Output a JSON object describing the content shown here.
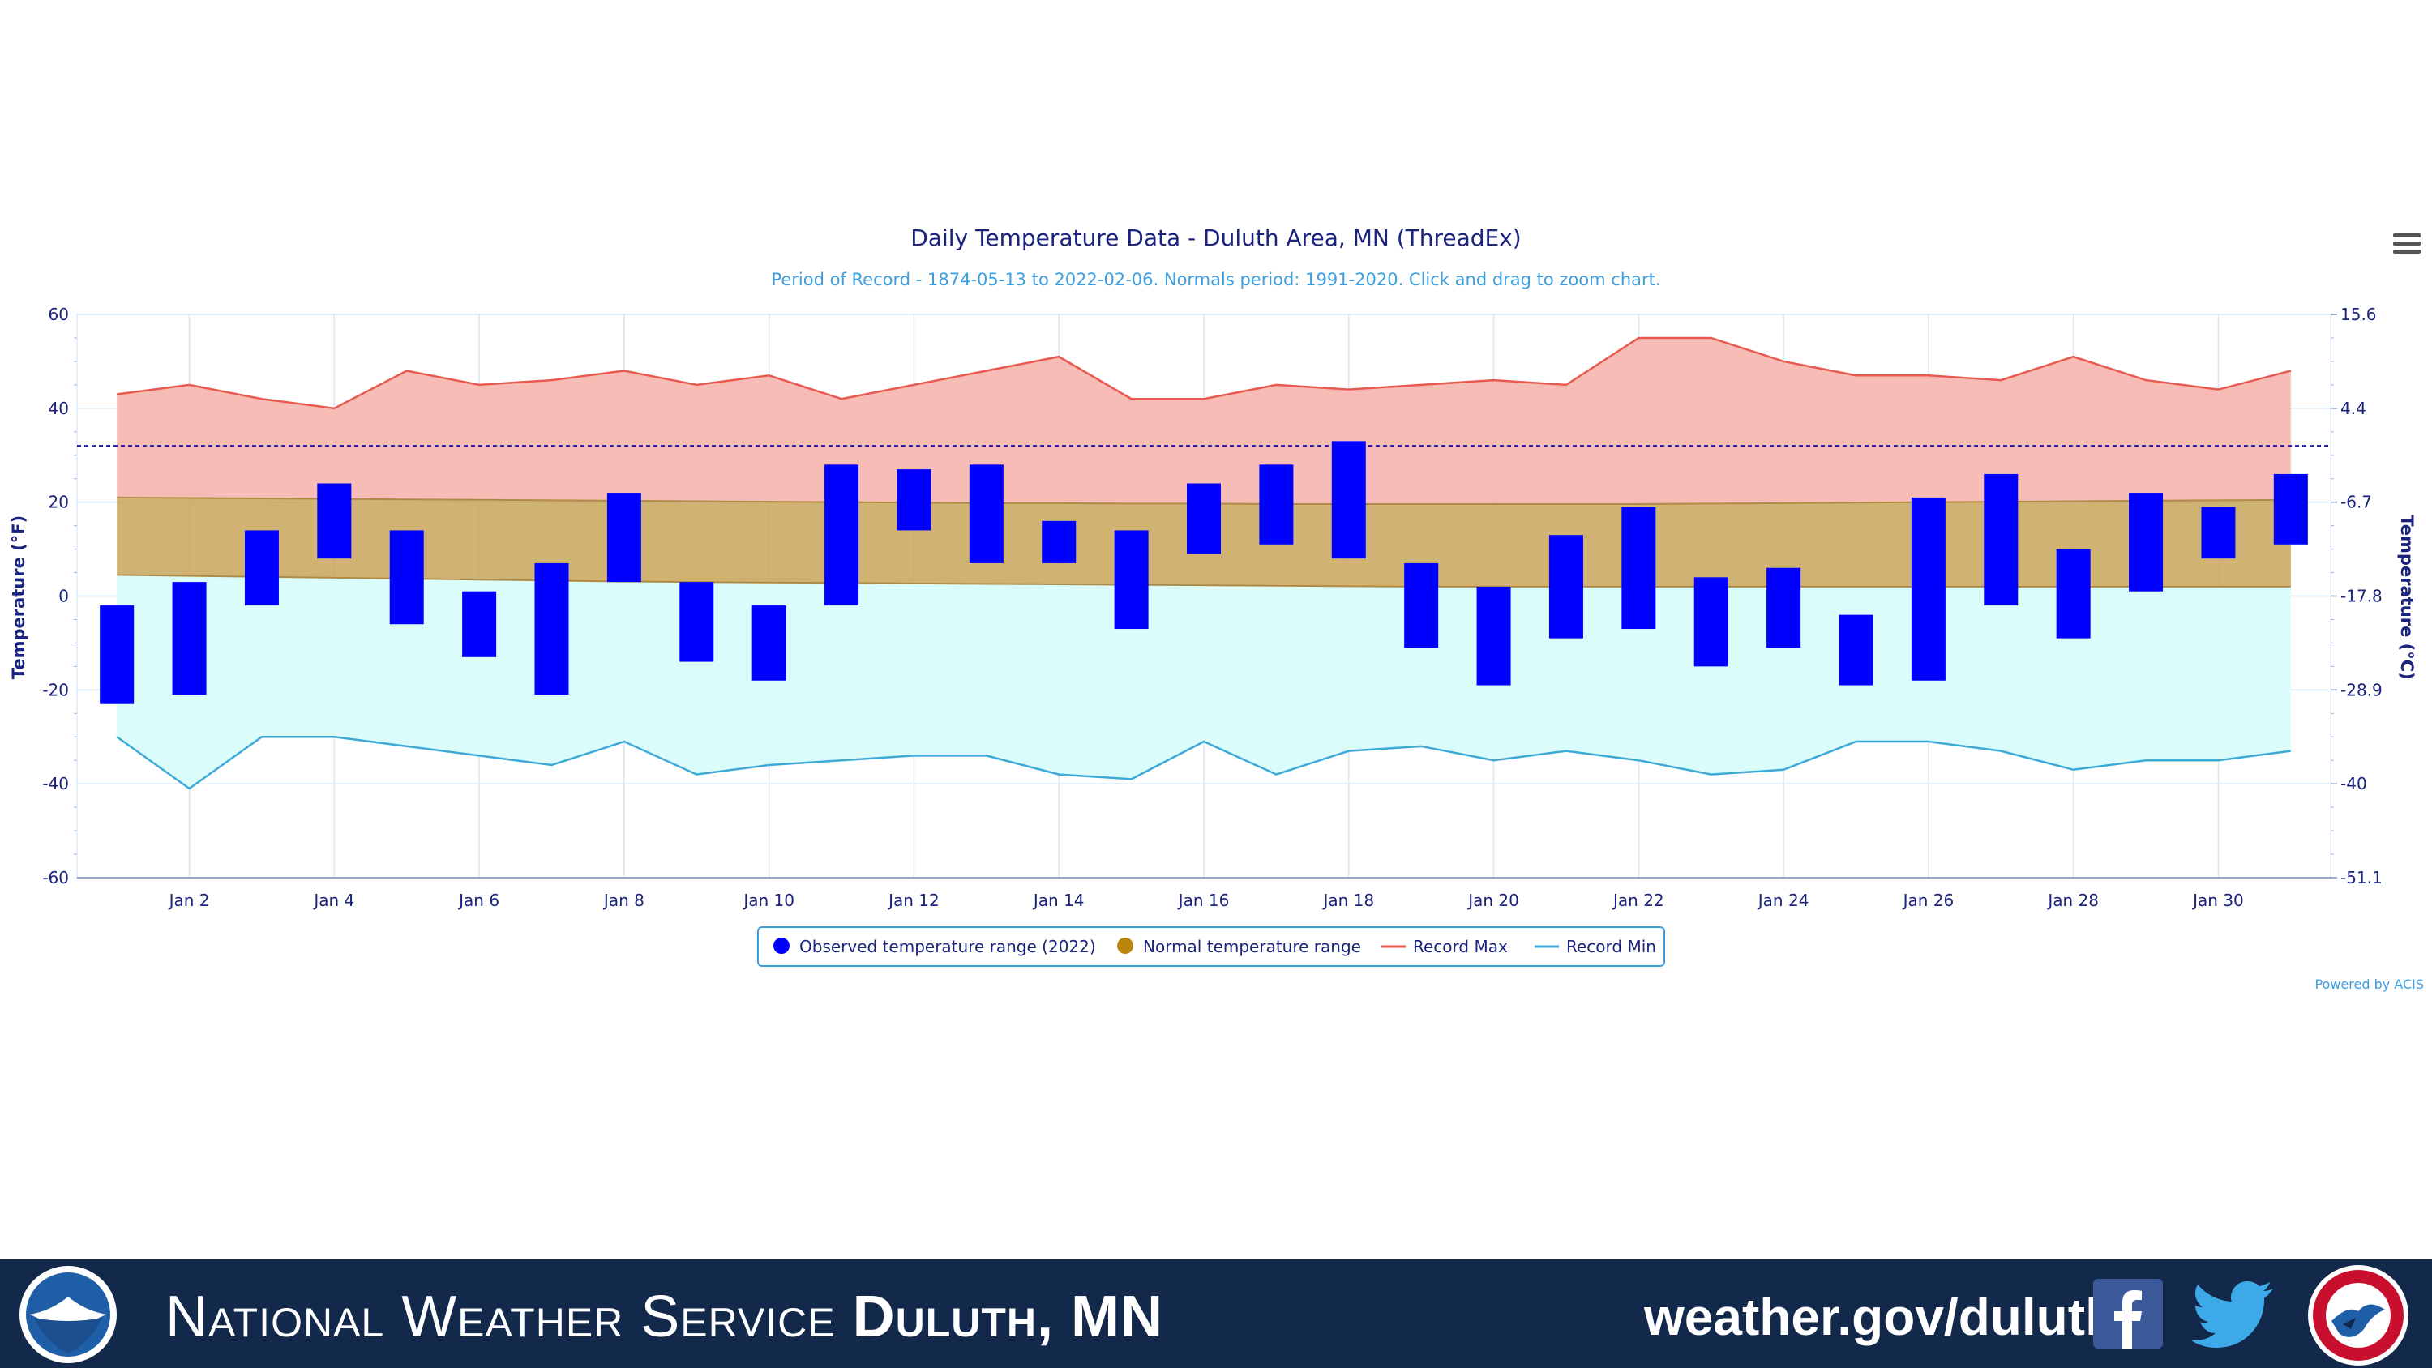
{
  "chart_data": {
    "type": "floating-bar-with-areas",
    "title": "Daily Temperature Data - Duluth Area, MN (ThreadEx)",
    "subtitle": "Period of Record - 1874-05-13 to 2022-02-06. Normals period: 1991-2020. Click and drag to zoom chart.",
    "ylabel_left": "Temperature (°F)",
    "ylabel_right": "Temperature (°C)",
    "ylim": [
      -60,
      60
    ],
    "yticks_left": [
      "60",
      "40",
      "20",
      "0",
      "-20",
      "-40",
      "-60"
    ],
    "yticks_right": [
      "15.6",
      "4.4",
      "-6.7",
      "-17.8",
      "-28.9",
      "-40",
      "-51.1"
    ],
    "xticks": [
      "Jan 2",
      "Jan 4",
      "Jan 6",
      "Jan 8",
      "Jan 10",
      "Jan 12",
      "Jan 14",
      "Jan 16",
      "Jan 18",
      "Jan 20",
      "Jan 22",
      "Jan 24",
      "Jan 26",
      "Jan 28",
      "Jan 30"
    ],
    "freezing_line": 32,
    "x": [
      1,
      2,
      3,
      4,
      5,
      6,
      7,
      8,
      9,
      10,
      11,
      12,
      13,
      14,
      15,
      16,
      17,
      18,
      19,
      20,
      21,
      22,
      23,
      24,
      25,
      26,
      27,
      28,
      29,
      30,
      31
    ],
    "series": [
      {
        "name": "Observed temperature range (2022)",
        "color": "#0000ff",
        "low": [
          -23,
          -21,
          -2,
          8,
          -6,
          -13,
          -21,
          3,
          -14,
          -18,
          -2,
          14,
          7,
          7,
          -7,
          9,
          11,
          8,
          -11,
          -19,
          -9,
          -7,
          -15,
          -11,
          -19,
          -18,
          -2,
          -9,
          1,
          8,
          11
        ],
        "high": [
          -2,
          3,
          14,
          24,
          14,
          1,
          7,
          22,
          3,
          -2,
          28,
          27,
          28,
          16,
          14,
          24,
          28,
          33,
          7,
          2,
          13,
          19,
          4,
          6,
          -4,
          21,
          26,
          10,
          22,
          19,
          26
        ]
      },
      {
        "name": "Normal temperature range",
        "color": "#c8a45a",
        "low": [
          4.5,
          4.3,
          4.1,
          3.9,
          3.7,
          3.5,
          3.3,
          3.1,
          3.0,
          2.9,
          2.8,
          2.7,
          2.6,
          2.5,
          2.4,
          2.3,
          2.2,
          2.1,
          2.0,
          2.0,
          2.0,
          2.0,
          2.0,
          2.0,
          2.0,
          2.0,
          2.0,
          2.0,
          2.0,
          2.0,
          2.0
        ],
        "high": [
          21,
          20.9,
          20.8,
          20.7,
          20.6,
          20.5,
          20.4,
          20.3,
          20.2,
          20.1,
          20.0,
          19.9,
          19.8,
          19.8,
          19.7,
          19.7,
          19.6,
          19.6,
          19.6,
          19.6,
          19.6,
          19.6,
          19.7,
          19.8,
          19.9,
          20.0,
          20.1,
          20.2,
          20.3,
          20.4,
          20.5
        ]
      },
      {
        "name": "Record Max",
        "color": "#e8594f",
        "values": [
          43,
          45,
          42,
          40,
          48,
          45,
          46,
          48,
          45,
          47,
          42,
          45,
          48,
          51,
          42,
          42,
          45,
          44,
          45,
          46,
          45,
          55,
          55,
          50,
          47,
          47,
          46,
          51,
          46,
          44,
          48
        ]
      },
      {
        "name": "Record Min",
        "color": "#3da9d6",
        "values": [
          -30,
          -41,
          -30,
          -30,
          -32,
          -34,
          -36,
          -31,
          -38,
          -36,
          -35,
          -34,
          -34,
          -38,
          -39,
          -31,
          -38,
          -33,
          -32,
          -35,
          -33,
          -35,
          -38,
          -37,
          -31,
          -31,
          -33,
          -37,
          -35,
          -35,
          -33
        ]
      }
    ],
    "legend": {
      "placement": "bottom-center",
      "items": [
        "Observed temperature range (2022)",
        "Normal temperature range",
        "Record Max",
        "Record Min"
      ]
    },
    "grid": true,
    "credits": "Powered by ACIS"
  },
  "footer": {
    "agency": "National Weather Service",
    "office": "Duluth, MN",
    "url": "weather.gov/duluth",
    "background": "#13294b"
  },
  "icons": {
    "menu": "hamburger-menu-icon",
    "noaa": "noaa-logo",
    "facebook": "facebook-icon",
    "twitter": "twitter-icon",
    "nws": "nws-logo"
  }
}
